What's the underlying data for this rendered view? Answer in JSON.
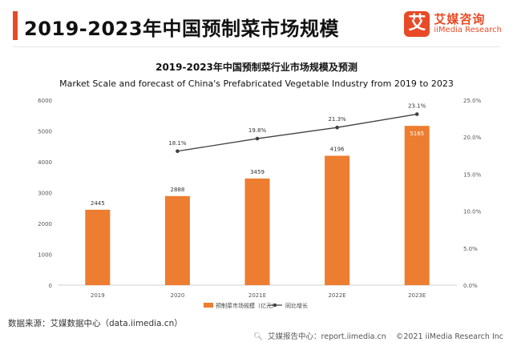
{
  "header": {
    "title": "2019-2023年中国预制菜市场规模",
    "logo_mark": "艾",
    "logo_cn": "艾媒咨询",
    "logo_en": "iiMedia Research"
  },
  "chart_data": {
    "type": "bar",
    "title": "2019-2023年中国预制菜行业市场规模及预测",
    "subtitle": "Market Scale and forecast of China's Prefabricated Vegetable Industry from 2019 to 2023",
    "categories": [
      "2019",
      "2020",
      "2021E",
      "2022E",
      "2023E"
    ],
    "series": [
      {
        "name": "预制菜市场规模（亿元）",
        "type": "bar",
        "axis": "left",
        "values": [
          2445,
          2888,
          3459,
          4196,
          5165
        ],
        "labels": [
          "2445",
          "2888",
          "3459",
          "4196",
          "5165"
        ],
        "color": "#ed7d31"
      },
      {
        "name": "同比增长",
        "type": "line",
        "axis": "right",
        "values": [
          null,
          18.1,
          19.8,
          21.3,
          23.1
        ],
        "labels": [
          "",
          "18.1%",
          "19.8%",
          "21.3%",
          "23.1%"
        ],
        "color": "#404040"
      }
    ],
    "ylim": [
      0,
      6000
    ],
    "y_ticks": [
      "0",
      "1000",
      "2000",
      "3000",
      "4000",
      "5000",
      "6000"
    ],
    "y2lim": [
      0,
      25
    ],
    "y2_ticks": [
      "0.0%",
      "5.0%",
      "10.0%",
      "15.0%",
      "20.0%",
      "25.0%"
    ],
    "grid": false,
    "legend_position": "bottom"
  },
  "footer": {
    "source": "数据来源：艾媒数据中心（data.iimedia.cn）",
    "report_center": "艾媒报告中心：report.iimedia.cn",
    "copyright": "©2021  iiMedia Research  Inc"
  },
  "icons": {
    "search": "search-icon"
  }
}
